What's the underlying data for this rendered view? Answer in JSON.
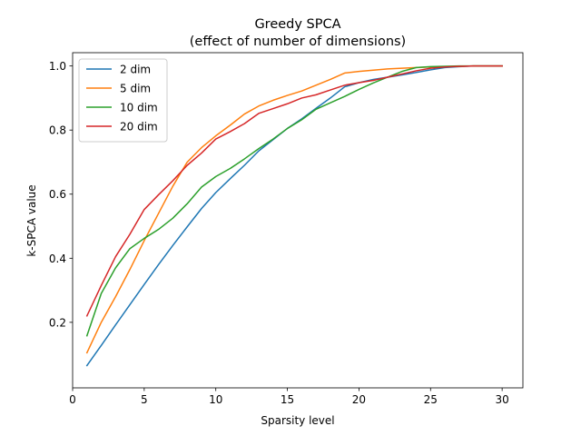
{
  "chart_data": {
    "type": "line",
    "title": "Greedy SPCA",
    "subtitle": "(effect of number of dimensions)",
    "xlabel": "Sparsity level",
    "ylabel": "k-SPCA value",
    "xlim": [
      0,
      31.45
    ],
    "ylim": [
      -0.0045,
      1.0415
    ],
    "xticks": [
      0,
      5,
      10,
      15,
      20,
      25,
      30
    ],
    "yticks": [
      0.2,
      0.4,
      0.6,
      0.8,
      1.0
    ],
    "xtick_labels": [
      "0",
      "5",
      "10",
      "15",
      "20",
      "25",
      "30"
    ],
    "ytick_labels": [
      "0.2",
      "0.4",
      "0.6",
      "0.8",
      "1.0"
    ],
    "grid": false,
    "legend_position": "upper-left",
    "x": [
      1,
      2,
      3,
      4,
      5,
      6,
      7,
      8,
      9,
      10,
      11,
      12,
      13,
      14,
      15,
      16,
      17,
      18,
      19,
      20,
      21,
      22,
      23,
      24,
      25,
      26,
      27,
      28,
      29,
      30
    ],
    "series": [
      {
        "name": "2 dim",
        "color": "#1f77b4",
        "values": [
          0.065,
          0.128,
          0.192,
          0.255,
          0.318,
          0.38,
          0.44,
          0.498,
          0.555,
          0.605,
          0.648,
          0.69,
          0.735,
          0.77,
          0.805,
          0.835,
          0.868,
          0.9,
          0.935,
          0.948,
          0.958,
          0.965,
          0.972,
          0.98,
          0.988,
          0.995,
          0.998,
          1.0,
          1.0,
          1.0
        ]
      },
      {
        "name": "5 dim",
        "color": "#ff7f0e",
        "values": [
          0.105,
          0.2,
          0.28,
          0.365,
          0.455,
          0.54,
          0.625,
          0.7,
          0.745,
          0.782,
          0.815,
          0.85,
          0.875,
          0.893,
          0.908,
          0.922,
          0.94,
          0.958,
          0.978,
          0.983,
          0.987,
          0.991,
          0.993,
          0.995,
          0.997,
          0.998,
          0.999,
          1.0,
          1.0,
          1.0
        ]
      },
      {
        "name": "10 dim",
        "color": "#2ca02c",
        "values": [
          0.158,
          0.29,
          0.37,
          0.43,
          0.462,
          0.49,
          0.525,
          0.57,
          0.622,
          0.655,
          0.68,
          0.71,
          0.742,
          0.772,
          0.805,
          0.832,
          0.865,
          0.885,
          0.905,
          0.927,
          0.947,
          0.965,
          0.983,
          0.995,
          0.998,
          0.999,
          1.0,
          1.0,
          1.0,
          1.0
        ]
      },
      {
        "name": "20 dim",
        "color": "#d62728",
        "values": [
          0.22,
          0.315,
          0.405,
          0.475,
          0.552,
          0.598,
          0.642,
          0.69,
          0.728,
          0.772,
          0.795,
          0.82,
          0.852,
          0.867,
          0.882,
          0.9,
          0.91,
          0.925,
          0.94,
          0.948,
          0.955,
          0.965,
          0.975,
          0.985,
          0.993,
          0.997,
          0.999,
          1.0,
          1.0,
          1.0
        ]
      }
    ]
  }
}
